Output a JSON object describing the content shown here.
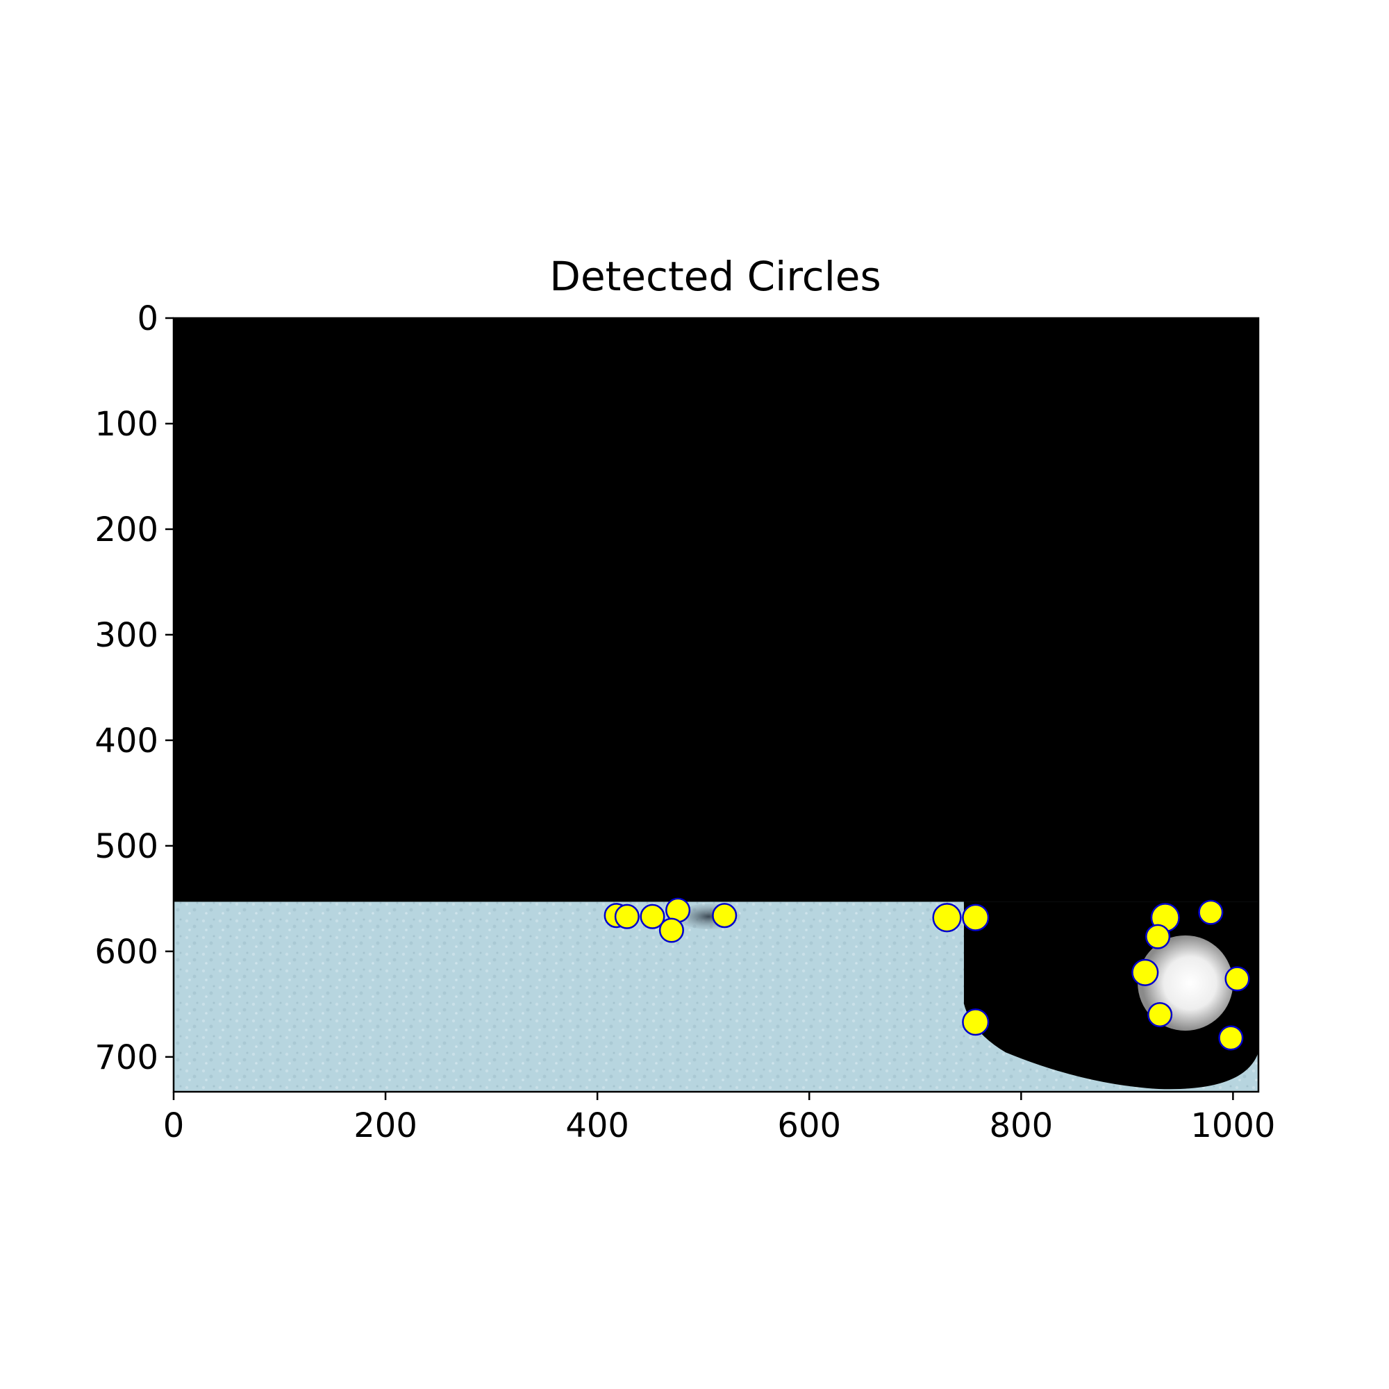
{
  "chart_data": {
    "type": "scatter",
    "title": "Detected Circles",
    "xlabel": "",
    "ylabel": "",
    "xlim": [
      0,
      1024
    ],
    "ylim": [
      733,
      0
    ],
    "y_inverted": true,
    "x_ticks": [
      0,
      200,
      400,
      600,
      800,
      1000
    ],
    "y_ticks": [
      0,
      100,
      200,
      300,
      400,
      500,
      600,
      700
    ],
    "x_tick_labels": [
      "0",
      "200",
      "400",
      "600",
      "800",
      "1000"
    ],
    "y_tick_labels": [
      "0",
      "100",
      "200",
      "300",
      "400",
      "500",
      "600",
      "700"
    ],
    "grid": false,
    "legend": "none",
    "background_image": {
      "masked_region_color": "#000000",
      "snow_color": "#b7d5df",
      "snow_region_top_y": 553,
      "black_patch": {
        "x0": 746,
        "x1": 1024,
        "y0": 553,
        "y1": 722
      },
      "bright_ball": {
        "cx": 955,
        "cy": 630,
        "r": 45
      },
      "dark_hole": {
        "cx": 505,
        "cy": 567,
        "rx": 30,
        "ry": 12
      }
    },
    "series": [
      {
        "marker_fill": "#ffff00",
        "marker_edge": "#0000cc",
        "points": [
          {
            "x": 418,
            "y": 566,
            "r": 11
          },
          {
            "x": 428,
            "y": 567,
            "r": 11
          },
          {
            "x": 452,
            "y": 567,
            "r": 11
          },
          {
            "x": 476,
            "y": 561,
            "r": 11
          },
          {
            "x": 470,
            "y": 580,
            "r": 11
          },
          {
            "x": 520,
            "y": 566,
            "r": 11
          },
          {
            "x": 730,
            "y": 568,
            "r": 13
          },
          {
            "x": 757,
            "y": 568,
            "r": 12
          },
          {
            "x": 757,
            "y": 667,
            "r": 12
          },
          {
            "x": 936,
            "y": 568,
            "r": 13
          },
          {
            "x": 979,
            "y": 563,
            "r": 11
          },
          {
            "x": 929,
            "y": 586,
            "r": 11
          },
          {
            "x": 917,
            "y": 620,
            "r": 12
          },
          {
            "x": 1004,
            "y": 626,
            "r": 11
          },
          {
            "x": 931,
            "y": 660,
            "r": 11
          },
          {
            "x": 998,
            "y": 682,
            "r": 11
          }
        ]
      }
    ]
  }
}
